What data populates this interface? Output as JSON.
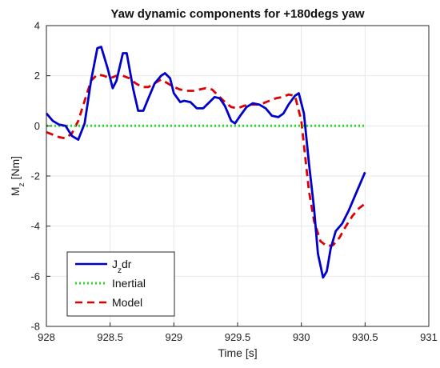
{
  "chart_data": {
    "type": "line",
    "title": "Yaw dynamic components for +180degs yaw",
    "xlabel": "Time [s]",
    "ylabel_main": "M",
    "ylabel_sub": "z",
    "ylabel_tail": " [Nm]",
    "xlim": [
      928,
      931
    ],
    "ylim": [
      -8,
      4
    ],
    "xticks": [
      928,
      928.5,
      929,
      929.5,
      930,
      930.5,
      931
    ],
    "xtick_labels": [
      "928",
      "928.5",
      "929",
      "929.5",
      "930",
      "930.5",
      "931"
    ],
    "yticks": [
      -8,
      -6,
      -4,
      -2,
      0,
      2,
      4
    ],
    "ytick_labels": [
      "-8",
      "-6",
      "-4",
      "-2",
      "0",
      "2",
      "4"
    ],
    "grid": true,
    "legend_position": "bottom-left",
    "series": [
      {
        "name": "J_zdr",
        "legend_main": "J",
        "legend_sub": "z",
        "legend_tail": "dr",
        "color": "#0000cc",
        "style": "solid",
        "x": [
          928.0,
          928.05,
          928.1,
          928.15,
          928.2,
          928.25,
          928.3,
          928.35,
          928.4,
          928.43,
          928.48,
          928.52,
          928.55,
          928.6,
          928.63,
          928.68,
          928.72,
          928.76,
          928.8,
          928.85,
          928.9,
          928.93,
          928.97,
          929.0,
          929.05,
          929.08,
          929.13,
          929.18,
          929.23,
          929.28,
          929.32,
          929.36,
          929.4,
          929.45,
          929.48,
          929.52,
          929.57,
          929.62,
          929.67,
          929.72,
          929.77,
          929.82,
          929.86,
          929.9,
          929.95,
          929.98,
          930.02,
          930.06,
          930.1,
          930.13,
          930.17,
          930.2,
          930.23,
          930.27,
          930.32,
          930.37,
          930.42,
          930.5
        ],
        "y": [
          0.5,
          0.2,
          0.05,
          0.0,
          -0.4,
          -0.55,
          0.1,
          1.8,
          3.1,
          3.15,
          2.3,
          1.5,
          1.8,
          2.9,
          2.9,
          1.5,
          0.6,
          0.6,
          1.1,
          1.7,
          2.0,
          2.1,
          1.9,
          1.3,
          0.95,
          1.0,
          0.95,
          0.7,
          0.7,
          0.95,
          1.15,
          1.1,
          0.8,
          0.2,
          0.1,
          0.4,
          0.75,
          0.9,
          0.85,
          0.7,
          0.4,
          0.35,
          0.5,
          0.85,
          1.2,
          1.3,
          0.5,
          -1.5,
          -3.3,
          -5.1,
          -6.05,
          -5.8,
          -4.9,
          -4.2,
          -3.9,
          -3.4,
          -2.8,
          -1.85
        ]
      },
      {
        "name": "Inertial",
        "legend_main": "Inertial",
        "legend_sub": "",
        "legend_tail": "",
        "color": "#22dd22",
        "style": "dotted",
        "x": [
          928.0,
          930.5
        ],
        "y": [
          0.0,
          0.0
        ]
      },
      {
        "name": "Model",
        "legend_main": "Model",
        "legend_sub": "",
        "legend_tail": "",
        "color": "#dd0000",
        "style": "dashed",
        "x": [
          928.0,
          928.05,
          928.1,
          928.15,
          928.2,
          928.25,
          928.3,
          928.35,
          928.4,
          928.45,
          928.5,
          928.55,
          928.6,
          928.65,
          928.7,
          928.75,
          928.8,
          928.85,
          928.9,
          928.95,
          929.0,
          929.05,
          929.1,
          929.15,
          929.2,
          929.25,
          929.3,
          929.35,
          929.4,
          929.45,
          929.5,
          929.55,
          929.6,
          929.65,
          929.7,
          929.75,
          929.8,
          929.85,
          929.9,
          929.95,
          930.0,
          930.03,
          930.06,
          930.1,
          930.15,
          930.2,
          930.25,
          930.3,
          930.35,
          930.4,
          930.45,
          930.5
        ],
        "y": [
          -0.25,
          -0.35,
          -0.45,
          -0.5,
          -0.3,
          0.2,
          1.0,
          1.8,
          2.05,
          2.0,
          1.9,
          2.0,
          2.0,
          1.9,
          1.7,
          1.55,
          1.55,
          1.7,
          1.85,
          1.7,
          1.55,
          1.45,
          1.4,
          1.4,
          1.45,
          1.5,
          1.45,
          1.2,
          0.95,
          0.75,
          0.7,
          0.8,
          0.85,
          0.85,
          0.9,
          1.0,
          1.1,
          1.15,
          1.25,
          1.2,
          0.2,
          -1.2,
          -2.6,
          -3.8,
          -4.6,
          -4.8,
          -4.75,
          -4.45,
          -4.0,
          -3.6,
          -3.3,
          -3.1
        ]
      }
    ]
  }
}
